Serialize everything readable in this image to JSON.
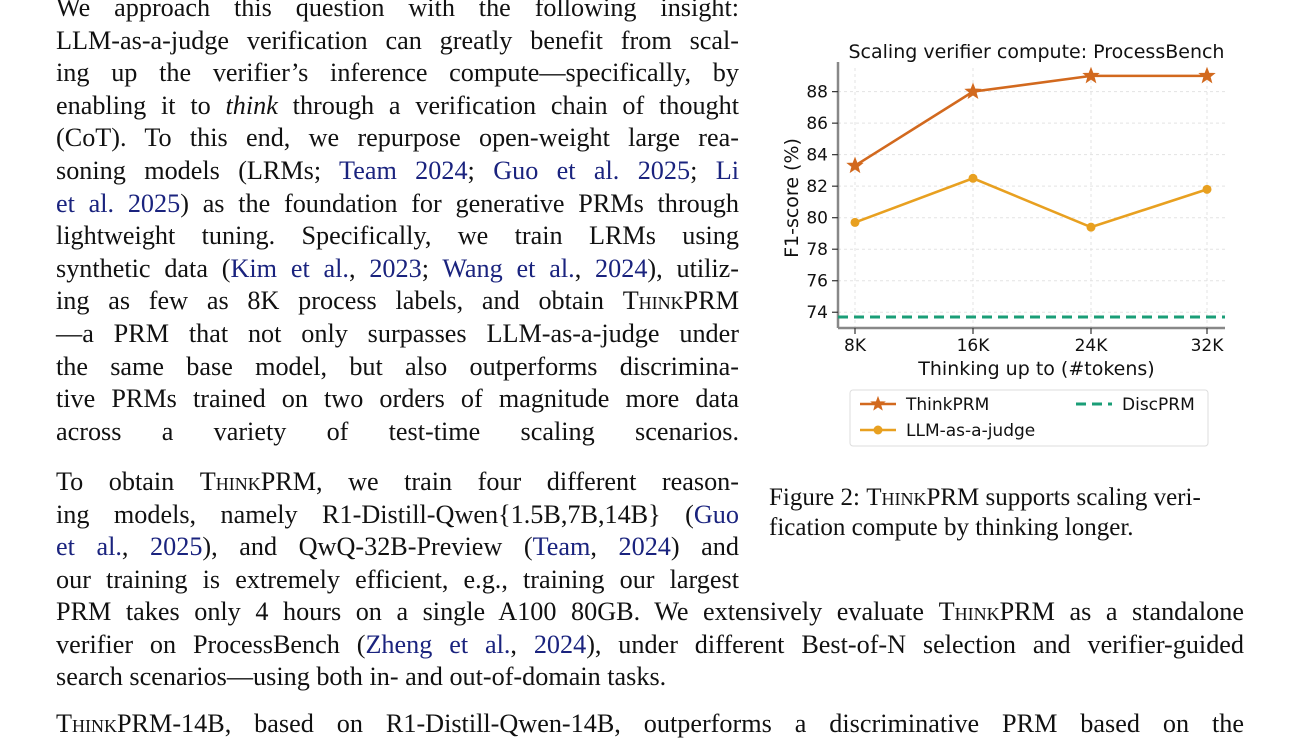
{
  "para1": {
    "lines": [
      [
        "We approach this question with the following insight:"
      ],
      [
        "LLM-as-a-judge verification can greatly benefit from scal-"
      ],
      [
        "ing up the verifier’s inference compute—specifically, by"
      ],
      [
        "enabling it to ",
        {
          "i": "think"
        },
        " through a verification chain of thought"
      ],
      [
        "(CoT). To this end, we repurpose open-weight large rea-"
      ],
      [
        "soning models (LRMs; ",
        {
          "c": "Team 2024"
        },
        "; ",
        {
          "c": "Guo et al. 2025"
        },
        "; ",
        {
          "c": "Li"
        }
      ],
      [
        {
          "c": "et al. 2025"
        },
        ") as the foundation for generative PRMs through"
      ],
      [
        "lightweight tuning.  Specifically, we train LRMs using"
      ],
      [
        "synthetic data (",
        {
          "c": "Kim et al."
        },
        ", ",
        {
          "c": "2023"
        },
        "; ",
        {
          "c": "Wang et al."
        },
        ", ",
        {
          "c": "2024"
        },
        "), utiliz-"
      ],
      [
        "ing as few as 8K process labels, and obtain ",
        {
          "s": "ThinkPRM"
        }
      ],
      [
        "—a PRM that not only surpasses LLM-as-a-judge under"
      ],
      [
        "the same base model, but also outperforms discrimina-"
      ],
      [
        "tive PRMs trained on two orders of magnitude more data"
      ],
      [
        "across a variety of test-time scaling scenarios."
      ]
    ]
  },
  "para2": {
    "lines": [
      [
        "To obtain ",
        {
          "s": "ThinkPRM"
        },
        ", we train four different reason-"
      ],
      [
        "ing models, namely R1-Distill-Qwen{1.5B,7B,14B} (",
        {
          "c": "Guo"
        }
      ],
      [
        {
          "c": "et al."
        },
        ", ",
        {
          "c": "2025"
        },
        "), and QwQ-32B-Preview (",
        {
          "c": "Team"
        },
        ", ",
        {
          "c": "2024"
        },
        ") and"
      ],
      [
        "our training is extremely efficient, e.g., training our largest"
      ]
    ],
    "full_lines": [
      [
        "PRM takes only 4 hours on a single A100 80GB. We extensively evaluate ",
        {
          "s": "ThinkPRM"
        },
        " as a standalone"
      ],
      [
        "verifier on ProcessBench (",
        {
          "c": "Zheng et al."
        },
        ", ",
        {
          "c": "2024"
        },
        "), under different Best-of-N selection and verifier-guided"
      ],
      [
        "search scenarios—using both in- and out-of-domain tasks."
      ]
    ]
  },
  "para3": {
    "lines": [
      [
        {
          "s": "ThinkPRM"
        },
        "-14B, based on R1-Distill-Qwen-14B, outperforms a discriminative PRM based on the"
      ]
    ]
  },
  "caption": {
    "prefix": "Figure 2: ",
    "name": "ThinkPRM",
    "rest": " supports scaling veri-fication compute by thinking longer."
  },
  "chart_data": {
    "type": "line",
    "title": "Scaling verifier compute: ProcessBench",
    "xlabel": "Thinking up to (#tokens)",
    "ylabel": "F1-score (%)",
    "categories": [
      "8K",
      "16K",
      "24K",
      "32K"
    ],
    "ylim": [
      73,
      89.5
    ],
    "yticks": [
      74,
      76,
      78,
      80,
      82,
      84,
      86,
      88
    ],
    "grid": true,
    "legend_position": "bottom",
    "series": [
      {
        "name": "ThinkPRM",
        "values": [
          83.3,
          88.0,
          89.0,
          89.0
        ],
        "color": "#d2691e",
        "marker": "star",
        "style": "solid"
      },
      {
        "name": "LLM-as-a-judge",
        "values": [
          79.7,
          82.5,
          79.4,
          81.8
        ],
        "color": "#e8a020",
        "marker": "circle",
        "style": "solid"
      },
      {
        "name": "DiscPRM",
        "values": [
          73.7,
          73.7,
          73.7,
          73.7
        ],
        "color": "#1a9e77",
        "marker": "none",
        "style": "dashed"
      }
    ]
  },
  "colors": {
    "citation": "#1a237e",
    "text": "#111111"
  }
}
